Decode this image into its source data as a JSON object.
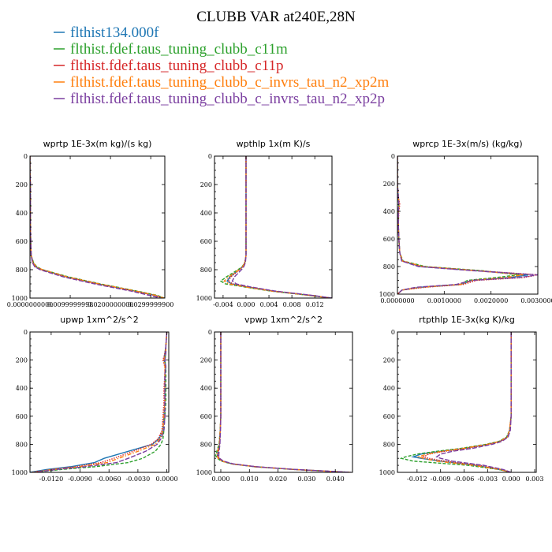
{
  "title": "CLUBB VAR at240E,28N",
  "legend": [
    {
      "name": "flthist134.000f",
      "color": "#1f77b4",
      "dash": ""
    },
    {
      "name": "flthist.fdef.taus_tuning_clubb_c11m",
      "color": "#2ca02c",
      "dash": "4,2"
    },
    {
      "name": "flthist.fdef.taus_tuning_clubb_c11p",
      "color": "#d62728",
      "dash": "1.5,1.5"
    },
    {
      "name": "flthist.fdef.taus_tuning_clubb_c_invrs_tau_n2_xp2m",
      "color": "#ff7f0e",
      "dash": "5,2,1.5,2"
    },
    {
      "name": "flthist.fdef.taus_tuning_clubb_c_invrs_tau_n2_xp2p",
      "color": "#7b3fa0",
      "dash": "6,2"
    }
  ],
  "chart_data": [
    {
      "type": "line",
      "title": "wprtp  1E-3x(m kg)/(s kg)",
      "xlim": [
        0.0,
        0.0335
      ],
      "ylim": [
        0,
        1000
      ],
      "y_inverted": true,
      "xticks": [
        0.0,
        0.01,
        0.02,
        0.03
      ],
      "xtick_labels": [
        "0.0000000000",
        "0.0099999998",
        "0.0200000000",
        "0.0299999900"
      ],
      "yticks": [
        0,
        200,
        400,
        600,
        800,
        1000
      ],
      "ytick_labels": [
        "0",
        "200",
        "400",
        "600",
        "800",
        "1000"
      ],
      "y": [
        0,
        100,
        200,
        300,
        400,
        500,
        600,
        700,
        750,
        780,
        800,
        850,
        900,
        950,
        980,
        1000
      ],
      "series": [
        {
          "values": [
            0.0,
            0.0,
            0.0001,
            0.0001,
            0.0001,
            0.0001,
            0.0002,
            0.0003,
            0.0008,
            0.0015,
            0.003,
            0.009,
            0.017,
            0.026,
            0.031,
            0.0333
          ]
        },
        {
          "values": [
            0.0,
            0.0,
            0.0001,
            0.0001,
            0.0001,
            0.0001,
            0.0002,
            0.0003,
            0.0009,
            0.0017,
            0.0032,
            0.0095,
            0.0175,
            0.0265,
            0.0315,
            0.0334
          ]
        },
        {
          "values": [
            0.0,
            0.0,
            0.0001,
            0.0001,
            0.0001,
            0.0001,
            0.0002,
            0.0003,
            0.0007,
            0.0014,
            0.0028,
            0.0088,
            0.0168,
            0.0258,
            0.0308,
            0.0332
          ]
        },
        {
          "values": [
            0.0,
            0.0,
            0.0001,
            0.0001,
            0.0001,
            0.0001,
            0.0002,
            0.0003,
            0.0008,
            0.0016,
            0.0031,
            0.0092,
            0.0172,
            0.0262,
            0.0312,
            0.0333
          ]
        },
        {
          "values": [
            0.0,
            0.0,
            0.0001,
            0.0001,
            0.0001,
            0.0001,
            0.0002,
            0.0003,
            0.0006,
            0.0012,
            0.0025,
            0.0082,
            0.016,
            0.025,
            0.0295,
            0.0325
          ]
        }
      ]
    },
    {
      "type": "line",
      "title": "wpthlp  1x(m K)/s",
      "xlim": [
        -0.0055,
        0.015
      ],
      "ylim": [
        0,
        1000
      ],
      "y_inverted": true,
      "xticks": [
        -0.004,
        0.0,
        0.004,
        0.008,
        0.012
      ],
      "xtick_labels": [
        "-0.004",
        "0.000",
        "0.004",
        "0.008",
        "0.012"
      ],
      "yticks": [
        0,
        200,
        400,
        600,
        800,
        1000
      ],
      "ytick_labels": [
        "0",
        "200",
        "400",
        "600",
        "800",
        "1000"
      ],
      "y": [
        0,
        200,
        400,
        600,
        700,
        750,
        780,
        800,
        850,
        880,
        900,
        920,
        950,
        980,
        1000
      ],
      "series": [
        {
          "values": [
            0.0,
            0.0,
            0.0,
            0.0,
            0.0,
            -0.0002,
            -0.0006,
            -0.0012,
            -0.0028,
            -0.0033,
            -0.0025,
            0.0,
            0.0045,
            0.011,
            0.0148
          ]
        },
        {
          "values": [
            0.0,
            0.0,
            0.0,
            0.0,
            0.0,
            -0.0002,
            -0.0007,
            -0.0014,
            -0.0034,
            -0.0044,
            -0.0036,
            -0.0005,
            0.0042,
            0.0108,
            0.0147
          ]
        },
        {
          "values": [
            0.0,
            0.0,
            0.0,
            0.0,
            0.0,
            -0.0002,
            -0.0006,
            -0.0011,
            -0.0026,
            -0.0031,
            -0.0023,
            0.0002,
            0.0047,
            0.0112,
            0.0149
          ]
        },
        {
          "values": [
            0.0,
            0.0,
            0.0,
            0.0,
            0.0,
            -0.0002,
            -0.0006,
            -0.0012,
            -0.003,
            -0.0038,
            -0.003,
            -0.0003,
            0.0044,
            0.011,
            0.0148
          ]
        },
        {
          "values": [
            0.0,
            0.0,
            0.0,
            0.0,
            0.0,
            -0.0001,
            -0.0004,
            -0.0008,
            -0.002,
            -0.0024,
            -0.0017,
            0.0006,
            0.005,
            0.0114,
            0.015
          ]
        }
      ]
    },
    {
      "type": "line",
      "title": "wprcp  1E-3x(m/s) (kg/kg)",
      "xlim": [
        0.0,
        0.003
      ],
      "ylim": [
        0,
        1000
      ],
      "y_inverted": true,
      "xticks": [
        0.0,
        0.001,
        0.002,
        0.003
      ],
      "xtick_labels": [
        "0.0000000",
        "0.0010000",
        "0.0020000",
        "0.0030000"
      ],
      "yticks": [
        0,
        200,
        400,
        600,
        800,
        1000
      ],
      "ytick_labels": [
        "0",
        "200",
        "400",
        "600",
        "800",
        "1000"
      ],
      "y": [
        0,
        200,
        300,
        350,
        400,
        500,
        600,
        700,
        760,
        800,
        830,
        860,
        880,
        900,
        930,
        950,
        970,
        1000
      ],
      "series": [
        {
          "values": [
            0.0,
            0.0,
            2e-05,
            3e-05,
            2e-05,
            2e-05,
            3e-05,
            5e-05,
            0.0001,
            0.0005,
            0.0017,
            0.0028,
            0.0024,
            0.0016,
            0.00135,
            0.0005,
            0.0001,
            0.0
          ]
        },
        {
          "values": [
            0.0,
            0.0,
            2e-05,
            3e-05,
            2e-05,
            2e-05,
            3e-05,
            5e-05,
            0.00012,
            0.0006,
            0.0018,
            0.0026,
            0.0021,
            0.0015,
            0.00132,
            0.0005,
            0.0001,
            0.0
          ]
        },
        {
          "values": [
            0.0,
            0.0,
            2e-05,
            5e-05,
            3e-05,
            2e-05,
            3e-05,
            5e-05,
            0.0001,
            0.0005,
            0.0017,
            0.003,
            0.0027,
            0.0017,
            0.0014,
            0.0006,
            0.0001,
            0.0
          ]
        },
        {
          "values": [
            0.0,
            0.0,
            2e-05,
            4e-05,
            2e-05,
            2e-05,
            3e-05,
            5e-05,
            0.00011,
            0.00055,
            0.0017,
            0.0027,
            0.0023,
            0.0016,
            0.00134,
            0.0005,
            0.0001,
            0.0
          ]
        },
        {
          "values": [
            0.0,
            0.0,
            2e-05,
            3e-05,
            2e-05,
            2e-05,
            3e-05,
            5e-05,
            9e-05,
            0.00045,
            0.0016,
            0.003,
            0.0026,
            0.0016,
            0.00125,
            0.0004,
            0.0001,
            0.0
          ]
        }
      ]
    },
    {
      "type": "line",
      "title": "upwp  1xm^2/s^2",
      "xlim": [
        -0.0142,
        0.0002
      ],
      "ylim": [
        0,
        1000
      ],
      "y_inverted": true,
      "xticks": [
        -0.012,
        -0.009,
        -0.006,
        -0.003,
        0.0
      ],
      "xtick_labels": [
        "-0.0120",
        "-0.0090",
        "-0.0060",
        "-0.0030",
        "0.0000"
      ],
      "yticks": [
        0,
        200,
        400,
        600,
        800,
        1000
      ],
      "ytick_labels": [
        "0",
        "200",
        "400",
        "600",
        "800",
        "1000"
      ],
      "y": [
        0,
        100,
        150,
        200,
        250,
        300,
        400,
        500,
        600,
        700,
        760,
        800,
        850,
        900,
        930,
        960,
        980,
        1000
      ],
      "series": [
        {
          "values": [
            0.0,
            -0.0001,
            -0.0002,
            -0.0003,
            -0.0001,
            -0.0002,
            -0.0002,
            -0.0002,
            -0.0003,
            -0.0004,
            -0.0008,
            -0.0015,
            -0.004,
            -0.0065,
            -0.0075,
            -0.01,
            -0.0125,
            -0.0142
          ]
        },
        {
          "values": [
            0.0,
            -0.0001,
            -0.0001,
            -0.0002,
            -0.0001,
            -0.0001,
            -0.0001,
            -0.0001,
            -0.0002,
            -0.0003,
            -0.0004,
            -0.0006,
            -0.0012,
            -0.0025,
            -0.004,
            -0.0075,
            -0.011,
            -0.0138
          ]
        },
        {
          "values": [
            0.0,
            -0.0001,
            -0.0002,
            -0.0004,
            -0.0002,
            -0.0002,
            -0.0003,
            -0.0003,
            -0.0004,
            -0.0005,
            -0.0009,
            -0.0016,
            -0.0035,
            -0.0055,
            -0.0068,
            -0.0095,
            -0.012,
            -0.014
          ]
        },
        {
          "values": [
            0.0,
            -0.0001,
            -0.0001,
            -0.0003,
            -0.0002,
            -0.0002,
            -0.0002,
            -0.0002,
            -0.0003,
            -0.0004,
            -0.0007,
            -0.0012,
            -0.003,
            -0.005,
            -0.0062,
            -0.009,
            -0.0118,
            -0.0139
          ]
        },
        {
          "values": [
            0.0,
            -0.0001,
            -0.0001,
            -0.0002,
            -0.0001,
            -0.0002,
            -0.0002,
            -0.0002,
            -0.0002,
            -0.0003,
            -0.0006,
            -0.001,
            -0.0022,
            -0.004,
            -0.0052,
            -0.0085,
            -0.0115,
            -0.0137
          ]
        }
      ]
    },
    {
      "type": "line",
      "title": "vpwp  1xm^2/s^2",
      "xlim": [
        -0.0022,
        0.046
      ],
      "ylim": [
        0,
        1000
      ],
      "y_inverted": true,
      "xticks": [
        0.0,
        0.01,
        0.02,
        0.03,
        0.04
      ],
      "xtick_labels": [
        "0.000",
        "0.010",
        "0.020",
        "0.030",
        "0.040"
      ],
      "yticks": [
        0,
        200,
        400,
        600,
        800,
        1000
      ],
      "ytick_labels": [
        "0",
        "200",
        "400",
        "600",
        "800",
        "1000"
      ],
      "y": [
        0,
        200,
        400,
        600,
        700,
        800,
        850,
        880,
        900,
        920,
        940,
        960,
        980,
        1000
      ],
      "series": [
        {
          "values": [
            0.0,
            0.0,
            0.0,
            0.0,
            -0.0002,
            -0.0005,
            -0.001,
            -0.0012,
            -0.0008,
            0.0005,
            0.004,
            0.012,
            0.026,
            0.045
          ]
        },
        {
          "values": [
            0.0,
            0.0,
            0.0,
            0.0,
            -0.0002,
            -0.0006,
            -0.0014,
            -0.0018,
            -0.0012,
            0.0002,
            0.0038,
            0.0118,
            0.0258,
            0.0448
          ]
        },
        {
          "values": [
            0.0,
            0.0,
            0.0,
            0.0,
            -0.0002,
            -0.0004,
            -0.0008,
            -0.001,
            -0.0006,
            0.0007,
            0.0042,
            0.0122,
            0.0262,
            0.0452
          ]
        },
        {
          "values": [
            0.0,
            0.0,
            0.0,
            0.0,
            -0.0002,
            -0.0005,
            -0.0011,
            -0.0014,
            -0.0009,
            0.0004,
            0.004,
            0.012,
            0.026,
            0.045
          ]
        },
        {
          "values": [
            0.0,
            0.0,
            0.0,
            0.0,
            -0.0001,
            -0.0003,
            -0.0006,
            -0.0007,
            -0.0004,
            0.0009,
            0.0045,
            0.0125,
            0.0265,
            0.0455
          ]
        }
      ]
    },
    {
      "type": "line",
      "title": "rtpthlp  1E-3x(kg K)/kg",
      "xlim": [
        -0.0145,
        0.0032
      ],
      "ylim": [
        0,
        1000
      ],
      "y_inverted": true,
      "xticks": [
        -0.012,
        -0.009,
        -0.006,
        -0.003,
        0.0,
        0.003
      ],
      "xtick_labels": [
        "-0.012",
        "-0.009",
        "-0.006",
        "-0.003",
        "0.000",
        "0.003"
      ],
      "yticks": [
        0,
        200,
        400,
        600,
        800,
        1000
      ],
      "ytick_labels": [
        "0",
        "200",
        "400",
        "600",
        "800",
        "1000"
      ],
      "y": [
        0,
        200,
        400,
        600,
        700,
        750,
        780,
        800,
        830,
        850,
        870,
        890,
        900,
        920,
        950,
        980,
        1000
      ],
      "series": [
        {
          "values": [
            0.0,
            0.0,
            0.0,
            0.0,
            -0.0002,
            -0.0005,
            -0.0015,
            -0.003,
            -0.006,
            -0.009,
            -0.0115,
            -0.0125,
            -0.0115,
            -0.009,
            -0.0045,
            -0.0015,
            0.0
          ]
        },
        {
          "values": [
            0.0,
            0.0,
            0.0,
            0.0,
            -0.0002,
            -0.0006,
            -0.0016,
            -0.0032,
            -0.0065,
            -0.0095,
            -0.012,
            -0.0135,
            -0.014,
            -0.0125,
            -0.0055,
            -0.0015,
            0.0
          ]
        },
        {
          "values": [
            0.0,
            0.0,
            0.0,
            0.0,
            -0.0002,
            -0.0005,
            -0.0014,
            -0.0028,
            -0.0058,
            -0.0085,
            -0.0105,
            -0.0112,
            -0.0105,
            -0.0085,
            -0.004,
            -0.0012,
            0.0
          ]
        },
        {
          "values": [
            0.0,
            0.0,
            0.0,
            0.0,
            -0.0002,
            -0.0005,
            -0.0015,
            -0.003,
            -0.0062,
            -0.0088,
            -0.0108,
            -0.0118,
            -0.0112,
            -0.0095,
            -0.0048,
            -0.0014,
            0.0
          ]
        },
        {
          "values": [
            0.0,
            0.0,
            0.0,
            0.0,
            -0.0001,
            -0.0004,
            -0.0012,
            -0.0024,
            -0.005,
            -0.0075,
            -0.009,
            -0.0095,
            -0.009,
            -0.0075,
            -0.0035,
            -0.001,
            0.0
          ]
        }
      ]
    }
  ]
}
